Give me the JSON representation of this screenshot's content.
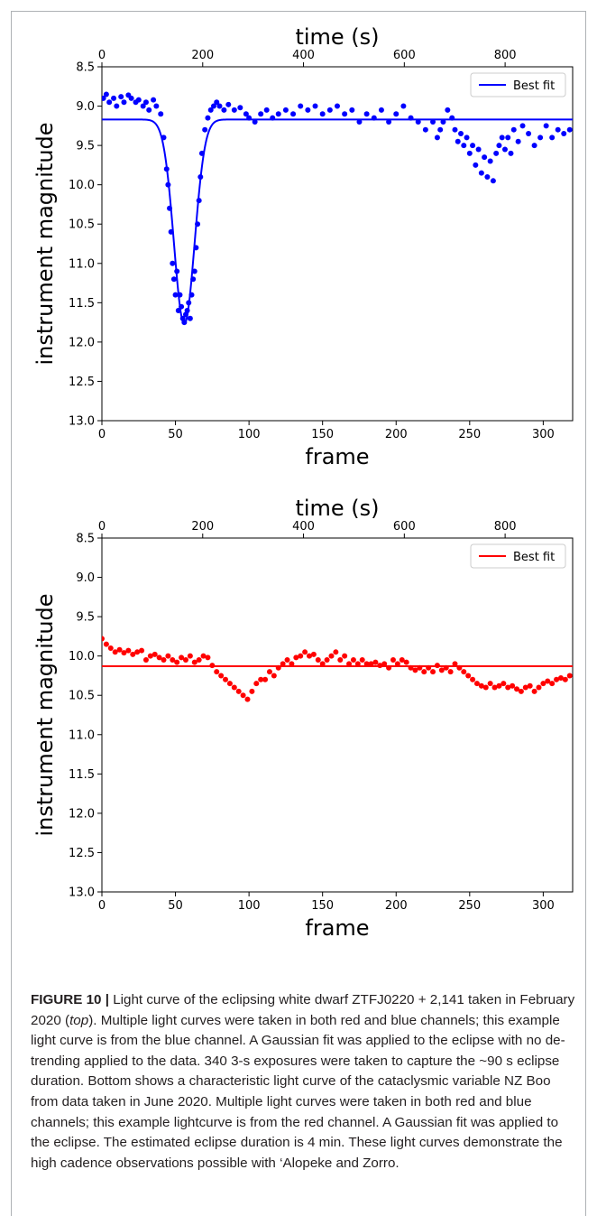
{
  "caption": {
    "label": "FIGURE 10 |",
    "text_a": " Light curve of the eclipsing white dwarf ZTFJ0220 + 2,141 taken in February 2020 (",
    "text_top": "top",
    "text_b": "). Multiple light curves were taken in both red and blue channels; this example light curve is from the blue channel. A Gaussian fit was applied to the eclipse with no de-trending applied to the data. 340 3-s exposures were taken to capture the ~90 s eclipse duration. Bottom shows a characteristic light curve of the cataclysmic variable NZ Boo from data taken in June 2020. Multiple light curves were taken in both red and blue channels; this example lightcurve is from the red channel. A Gaussian fit was applied to the eclipse. The estimated eclipse duration is 4 min. These light curves demonstrate the high cadence observations possible with ‘Alopeke and Zorro."
  },
  "chart_data": [
    {
      "type": "scatter",
      "xlabel": "frame",
      "ylabel": "instrument magnitude",
      "top_xlabel": "time (s)",
      "xlim": [
        0,
        320
      ],
      "ylim": [
        13.0,
        8.5
      ],
      "y_inverted": true,
      "xticks": [
        0,
        50,
        100,
        150,
        200,
        250,
        300
      ],
      "yticks": [
        "8.5",
        "9.0",
        "9.5",
        "10.0",
        "10.5",
        "11.0",
        "11.5",
        "12.0",
        "12.5",
        "13.0"
      ],
      "top_ticks": [
        0,
        200,
        400,
        600,
        800
      ],
      "top_xlim": [
        0,
        934
      ],
      "color": "#0000ff",
      "legend": {
        "label": "Best fit",
        "position": "top-right"
      },
      "fit": {
        "baseline": 9.17,
        "amplitude": 2.6,
        "center": 56,
        "sigma": 7
      },
      "series": [
        {
          "x": [
            1,
            3,
            5,
            8,
            10,
            13,
            15,
            18,
            20,
            23,
            25,
            28,
            30,
            32,
            35,
            37,
            40,
            42,
            44,
            45,
            46,
            47,
            48,
            49,
            50,
            51,
            52,
            53,
            54,
            55,
            56,
            57,
            58,
            59,
            60,
            61,
            62,
            63,
            64,
            65,
            66,
            67,
            68,
            70,
            72,
            74,
            76,
            78,
            80,
            83,
            86,
            90,
            94,
            98,
            100,
            104,
            108,
            112,
            116,
            120,
            125,
            130,
            135,
            140,
            145,
            150,
            155,
            160,
            165,
            170,
            175,
            180,
            185,
            190,
            195,
            200,
            205,
            210,
            215,
            220,
            225,
            228,
            230,
            232,
            235,
            238,
            240,
            242,
            244,
            246,
            248,
            250,
            252,
            254,
            256,
            258,
            260,
            262,
            264,
            266,
            268,
            270,
            272,
            274,
            276,
            278,
            280,
            283,
            286,
            290,
            294,
            298,
            302,
            306,
            310,
            314,
            318
          ],
          "y": [
            8.9,
            8.85,
            8.95,
            8.9,
            9.0,
            8.88,
            8.95,
            8.86,
            8.9,
            8.95,
            8.92,
            9.0,
            8.95,
            9.05,
            8.92,
            9.0,
            9.1,
            9.4,
            9.8,
            10.0,
            10.3,
            10.6,
            11.0,
            11.2,
            11.4,
            11.1,
            11.6,
            11.4,
            11.55,
            11.7,
            11.75,
            11.65,
            11.6,
            11.5,
            11.7,
            11.4,
            11.2,
            11.1,
            10.8,
            10.5,
            10.2,
            9.9,
            9.6,
            9.3,
            9.15,
            9.05,
            9.0,
            8.95,
            9.0,
            9.05,
            8.98,
            9.05,
            9.02,
            9.1,
            9.15,
            9.2,
            9.1,
            9.05,
            9.15,
            9.1,
            9.05,
            9.1,
            9.0,
            9.05,
            9.0,
            9.1,
            9.05,
            9.0,
            9.1,
            9.05,
            9.2,
            9.1,
            9.15,
            9.05,
            9.2,
            9.1,
            9.0,
            9.15,
            9.2,
            9.3,
            9.2,
            9.4,
            9.3,
            9.2,
            9.05,
            9.15,
            9.3,
            9.45,
            9.35,
            9.5,
            9.4,
            9.6,
            9.5,
            9.75,
            9.55,
            9.85,
            9.65,
            9.9,
            9.7,
            9.95,
            9.6,
            9.5,
            9.4,
            9.55,
            9.4,
            9.6,
            9.3,
            9.45,
            9.25,
            9.35,
            9.5,
            9.4,
            9.25,
            9.4,
            9.3,
            9.35,
            9.3
          ]
        }
      ]
    },
    {
      "type": "scatter",
      "xlabel": "frame",
      "ylabel": "instrument magnitude",
      "top_xlabel": "time (s)",
      "xlim": [
        0,
        320
      ],
      "ylim": [
        13.0,
        8.5
      ],
      "y_inverted": true,
      "xticks": [
        0,
        50,
        100,
        150,
        200,
        250,
        300
      ],
      "yticks": [
        "8.5",
        "9.0",
        "9.5",
        "10.0",
        "10.5",
        "11.0",
        "11.5",
        "12.0",
        "12.5",
        "13.0"
      ],
      "top_ticks": [
        0,
        200,
        400,
        600,
        800
      ],
      "top_xlim": [
        0,
        934
      ],
      "color": "#ff0000",
      "legend": {
        "label": "Best fit",
        "position": "top-right"
      },
      "fit": {
        "baseline": 10.13,
        "amplitude": 0,
        "center": 100,
        "sigma": 10
      },
      "series": [
        {
          "x": [
            0,
            3,
            6,
            9,
            12,
            15,
            18,
            21,
            24,
            27,
            30,
            33,
            36,
            39,
            42,
            45,
            48,
            51,
            54,
            57,
            60,
            63,
            66,
            69,
            72,
            75,
            78,
            81,
            84,
            87,
            90,
            93,
            96,
            99,
            102,
            105,
            108,
            111,
            114,
            117,
            120,
            123,
            126,
            129,
            132,
            135,
            138,
            141,
            144,
            147,
            150,
            153,
            156,
            159,
            162,
            165,
            168,
            171,
            174,
            177,
            180,
            183,
            186,
            189,
            192,
            195,
            198,
            201,
            204,
            207,
            210,
            213,
            216,
            219,
            222,
            225,
            228,
            231,
            234,
            237,
            240,
            243,
            246,
            249,
            252,
            255,
            258,
            261,
            264,
            267,
            270,
            273,
            276,
            279,
            282,
            285,
            288,
            291,
            294,
            297,
            300,
            303,
            306,
            309,
            312,
            315,
            318
          ],
          "y": [
            9.78,
            9.85,
            9.9,
            9.95,
            9.92,
            9.96,
            9.93,
            9.98,
            9.95,
            9.93,
            10.05,
            10.0,
            9.98,
            10.02,
            10.05,
            10.0,
            10.05,
            10.08,
            10.02,
            10.05,
            10.0,
            10.08,
            10.05,
            10.0,
            10.02,
            10.12,
            10.2,
            10.25,
            10.3,
            10.35,
            10.4,
            10.45,
            10.5,
            10.55,
            10.45,
            10.35,
            10.3,
            10.3,
            10.2,
            10.25,
            10.15,
            10.1,
            10.05,
            10.1,
            10.02,
            10.0,
            9.95,
            10.0,
            9.98,
            10.05,
            10.1,
            10.05,
            10.0,
            9.95,
            10.05,
            10.0,
            10.1,
            10.05,
            10.1,
            10.05,
            10.1,
            10.1,
            10.08,
            10.12,
            10.1,
            10.15,
            10.05,
            10.1,
            10.05,
            10.08,
            10.15,
            10.18,
            10.15,
            10.2,
            10.15,
            10.2,
            10.12,
            10.18,
            10.15,
            10.2,
            10.1,
            10.15,
            10.2,
            10.25,
            10.3,
            10.35,
            10.38,
            10.4,
            10.35,
            10.4,
            10.38,
            10.35,
            10.4,
            10.38,
            10.42,
            10.45,
            10.4,
            10.38,
            10.45,
            10.4,
            10.35,
            10.32,
            10.35,
            10.3,
            10.28,
            10.3,
            10.25
          ]
        }
      ]
    }
  ]
}
